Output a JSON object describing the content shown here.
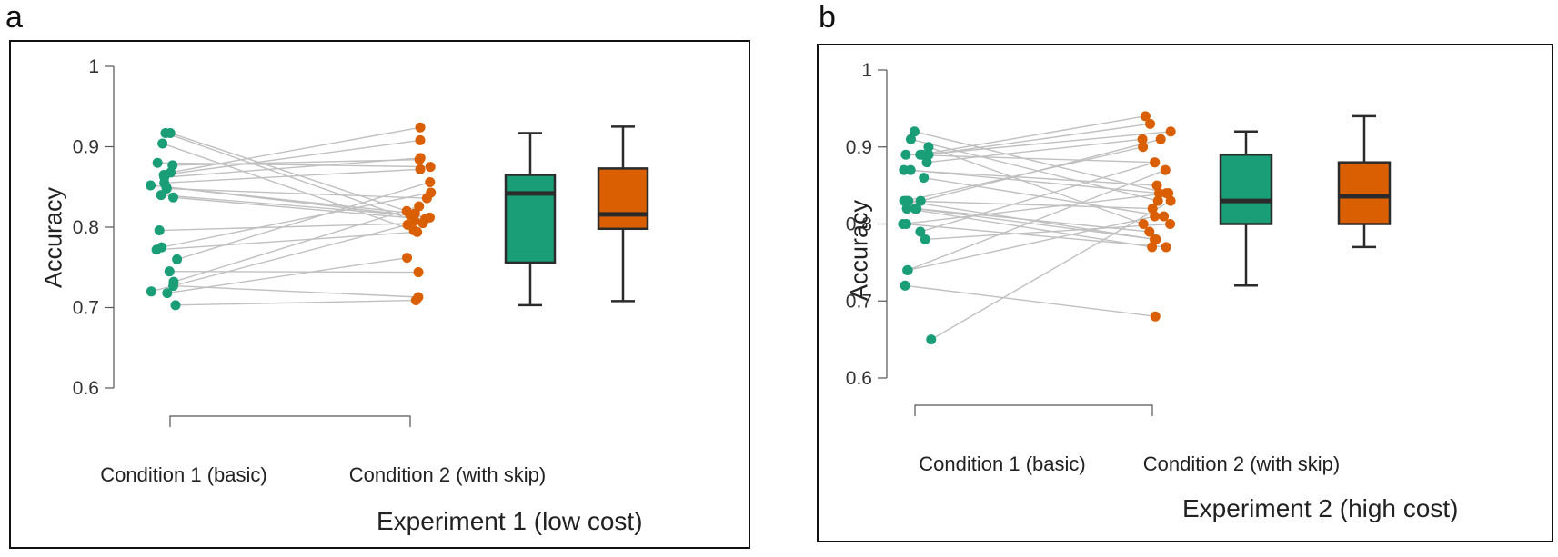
{
  "figure": {
    "panel_a_letter": "a",
    "panel_b_letter": "b"
  },
  "colors": {
    "condition1": "#1a9e77",
    "condition2": "#d95f02",
    "pair_line": "#c0c0c0",
    "box_edge": "#2b2b2b",
    "axis": "#555555"
  },
  "chart_data": [
    {
      "type": "scatter",
      "title": "Experiment 1 (low cost)",
      "ylabel": "Accuracy",
      "categories": [
        "Condition 1 (basic)",
        "Condition 2 (with skip)"
      ],
      "ylim": [
        0.6,
        1.0
      ],
      "yticks": [
        "0.6",
        "0.7",
        "0.8",
        "0.9",
        "1"
      ],
      "series": [
        {
          "name": "Condition 1 (basic)",
          "values": [
            0.917,
            0.917,
            0.904,
            0.88,
            0.877,
            0.868,
            0.865,
            0.862,
            0.855,
            0.852,
            0.85,
            0.848,
            0.84,
            0.837,
            0.796,
            0.775,
            0.772,
            0.76,
            0.745,
            0.732,
            0.727,
            0.72,
            0.718,
            0.703
          ]
        },
        {
          "name": "Condition 2 (with skip)",
          "values": [
            0.924,
            0.908,
            0.886,
            0.884,
            0.875,
            0.872,
            0.856,
            0.843,
            0.836,
            0.826,
            0.82,
            0.817,
            0.815,
            0.812,
            0.81,
            0.808,
            0.803,
            0.796,
            0.794,
            0.762,
            0.744,
            0.713,
            0.709,
            0.805
          ]
        }
      ],
      "pairs": [
        [
          0.917,
          0.82
        ],
        [
          0.917,
          0.808
        ],
        [
          0.904,
          0.796
        ],
        [
          0.88,
          0.875
        ],
        [
          0.877,
          0.884
        ],
        [
          0.868,
          0.924
        ],
        [
          0.865,
          0.908
        ],
        [
          0.862,
          0.886
        ],
        [
          0.855,
          0.872
        ],
        [
          0.852,
          0.817
        ],
        [
          0.85,
          0.812
        ],
        [
          0.848,
          0.836
        ],
        [
          0.84,
          0.815
        ],
        [
          0.837,
          0.81
        ],
        [
          0.796,
          0.805
        ],
        [
          0.775,
          0.843
        ],
        [
          0.772,
          0.794
        ],
        [
          0.76,
          0.856
        ],
        [
          0.745,
          0.744
        ],
        [
          0.732,
          0.826
        ],
        [
          0.727,
          0.713
        ],
        [
          0.72,
          0.803
        ],
        [
          0.718,
          0.762
        ],
        [
          0.703,
          0.709
        ]
      ],
      "boxplots": [
        {
          "name": "Condition 1 (basic)",
          "min": 0.703,
          "q1": 0.756,
          "median": 0.842,
          "q3": 0.865,
          "max": 0.917
        },
        {
          "name": "Condition 2 (with skip)",
          "min": 0.708,
          "q1": 0.798,
          "median": 0.816,
          "q3": 0.873,
          "max": 0.925
        }
      ]
    },
    {
      "type": "scatter",
      "title": "Experiment 2 (high cost)",
      "ylabel": "Accuracy",
      "categories": [
        "Condition 1 (basic)",
        "Condition 2 (with skip)"
      ],
      "ylim": [
        0.6,
        1.0
      ],
      "yticks": [
        "0.6",
        "0.7",
        "0.8",
        "0.9",
        "1"
      ],
      "series": [
        {
          "name": "Condition 1 (basic)",
          "values": [
            0.92,
            0.91,
            0.9,
            0.89,
            0.89,
            0.89,
            0.89,
            0.88,
            0.87,
            0.87,
            0.86,
            0.83,
            0.83,
            0.83,
            0.83,
            0.82,
            0.82,
            0.82,
            0.8,
            0.8,
            0.79,
            0.78,
            0.74,
            0.74,
            0.72,
            0.65
          ]
        },
        {
          "name": "Condition 2 (with skip)",
          "values": [
            0.94,
            0.93,
            0.92,
            0.91,
            0.91,
            0.9,
            0.88,
            0.88,
            0.87,
            0.85,
            0.84,
            0.84,
            0.83,
            0.83,
            0.82,
            0.81,
            0.8,
            0.8,
            0.79,
            0.78,
            0.78,
            0.77,
            0.77,
            0.68,
            0.84,
            0.81
          ]
        }
      ],
      "pairs": [
        [
          0.92,
          0.84
        ],
        [
          0.91,
          0.83
        ],
        [
          0.9,
          0.8
        ],
        [
          0.89,
          0.94
        ],
        [
          0.89,
          0.93
        ],
        [
          0.89,
          0.92
        ],
        [
          0.89,
          0.88
        ],
        [
          0.88,
          0.91
        ],
        [
          0.87,
          0.85
        ],
        [
          0.87,
          0.84
        ],
        [
          0.86,
          0.81
        ],
        [
          0.83,
          0.91
        ],
        [
          0.83,
          0.9
        ],
        [
          0.83,
          0.78
        ],
        [
          0.83,
          0.82
        ],
        [
          0.82,
          0.79
        ],
        [
          0.82,
          0.78
        ],
        [
          0.82,
          0.77
        ],
        [
          0.8,
          0.84
        ],
        [
          0.8,
          0.77
        ],
        [
          0.79,
          0.88
        ],
        [
          0.78,
          0.8
        ],
        [
          0.74,
          0.81
        ],
        [
          0.74,
          0.87
        ],
        [
          0.72,
          0.68
        ],
        [
          0.65,
          0.83
        ]
      ],
      "boxplots": [
        {
          "name": "Condition 1 (basic)",
          "min": 0.72,
          "q1": 0.8,
          "median": 0.83,
          "q3": 0.89,
          "max": 0.92
        },
        {
          "name": "Condition 2 (with skip)",
          "min": 0.77,
          "q1": 0.8,
          "median": 0.836,
          "q3": 0.88,
          "max": 0.94
        }
      ]
    }
  ]
}
